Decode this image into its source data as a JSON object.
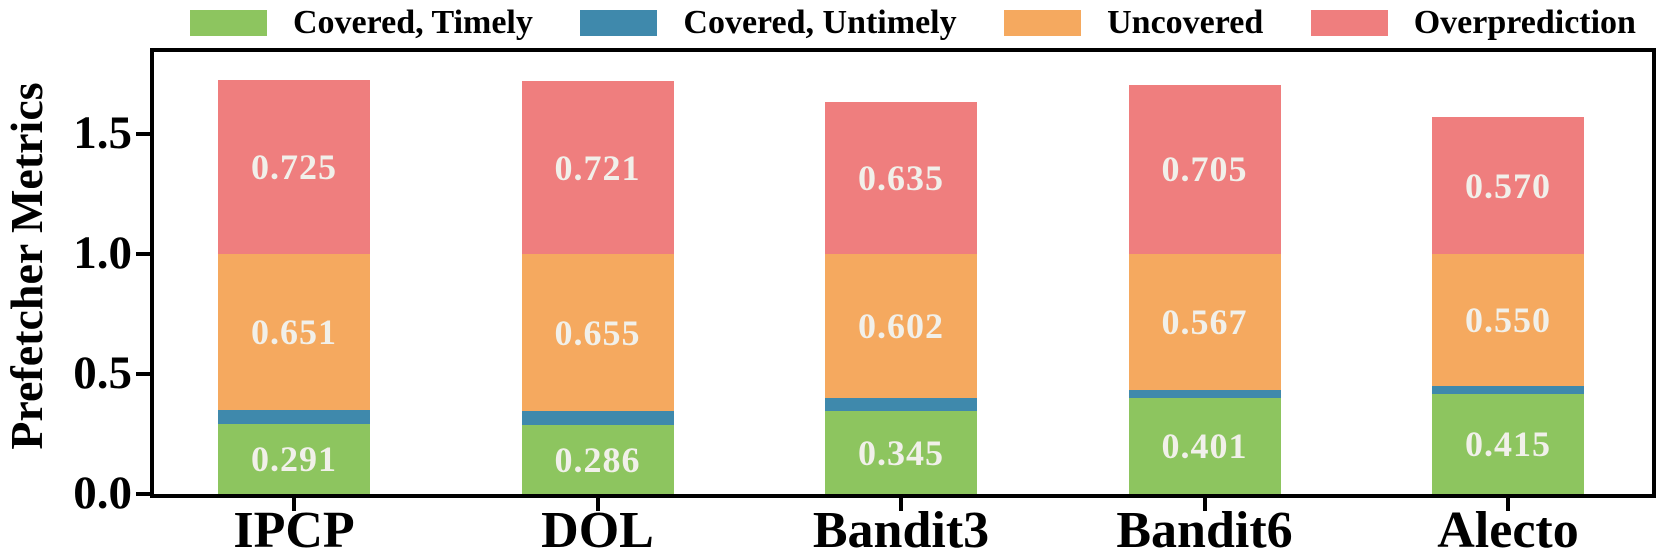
{
  "legend": {
    "items": [
      {
        "label": "Covered, Timely",
        "color": "#8dc55f"
      },
      {
        "label": "Covered, Untimely",
        "color": "#3f89ac"
      },
      {
        "label": "Uncovered",
        "color": "#f5a95f"
      },
      {
        "label": "Overprediction",
        "color": "#ef7e7e"
      }
    ]
  },
  "chart_data": {
    "type": "bar",
    "stacked": true,
    "title": "",
    "xlabel": "",
    "ylabel": "Prefetcher Metrics",
    "categories": [
      "IPCP",
      "DOL",
      "Bandit3",
      "Bandit6",
      "Alecto"
    ],
    "series": [
      {
        "name": "Covered, Timely",
        "color": "#8dc55f",
        "labeled": true,
        "values": [
          0.291,
          0.286,
          0.345,
          0.401,
          0.415
        ]
      },
      {
        "name": "Covered, Untimely",
        "color": "#3f89ac",
        "labeled": false,
        "values": [
          0.058,
          0.059,
          0.053,
          0.032,
          0.035
        ]
      },
      {
        "name": "Uncovered",
        "color": "#f5a95f",
        "labeled": true,
        "values": [
          0.651,
          0.655,
          0.602,
          0.567,
          0.55
        ]
      },
      {
        "name": "Overprediction",
        "color": "#ef7e7e",
        "labeled": true,
        "values": [
          0.725,
          0.721,
          0.635,
          0.705,
          0.57
        ]
      }
    ],
    "bar_totals": [
      1.725,
      1.721,
      1.635,
      1.705,
      1.57
    ],
    "yticks": [
      "0.0",
      "0.5",
      "1.0",
      "1.5"
    ],
    "ylim": [
      0,
      1.84
    ],
    "grid": false,
    "legend_position": "top",
    "bar_label_color": "#f1f0ea",
    "axis_color": "#000000"
  }
}
